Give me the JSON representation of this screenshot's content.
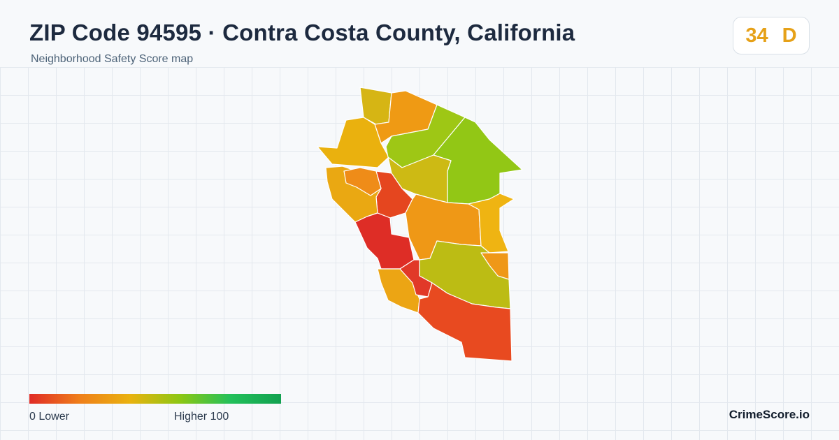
{
  "header": {
    "title": "ZIP Code 94595 · Contra Costa County, California",
    "subtitle": "Neighborhood Safety Score map"
  },
  "score": {
    "value": "34",
    "grade": "D",
    "color": "#e6a118"
  },
  "legend": {
    "min_label": "0  Lower",
    "max_label": "Higher  100",
    "gradient_colors": [
      "#e02b26",
      "#ef7f1a",
      "#e9b20f",
      "#8cc714",
      "#22c05a",
      "#12a150"
    ]
  },
  "brand": "CrimeScore.io",
  "map": {
    "region_colors": {
      "north_tip": "#d6b514",
      "north_upper": "#ef9a14",
      "west_upper": "#eab10e",
      "northeast": "#9ec715",
      "east": "#92c715",
      "center_north": "#cdba14",
      "center_core": "#e5461f",
      "west_mid": "#eaa812",
      "west_inner": "#ef8c18",
      "center_east": "#ef9816",
      "east_mid": "#efb412",
      "southwest_core": "#de2d26",
      "southeast_mid": "#bcbc14",
      "small_east": "#ef9818",
      "southwest": "#eca514",
      "south_small": "#e13928",
      "south_large": "#e84a20"
    }
  }
}
